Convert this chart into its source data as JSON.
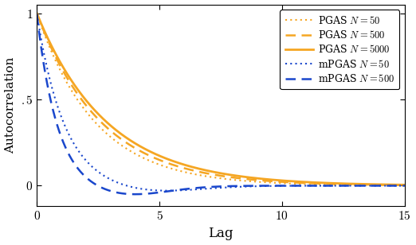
{
  "xlabel": "Lag",
  "ylabel": "Autocorrelation",
  "xlim": [
    0,
    15
  ],
  "ylim": [
    -0.12,
    1.05
  ],
  "yticks": [
    0,
    0.5,
    1.0
  ],
  "ytick_labels": [
    "$0$",
    "$.5$",
    "$1$"
  ],
  "xticks": [
    0,
    5,
    10,
    15
  ],
  "xtick_labels": [
    "$0$",
    "$5$",
    "$10$",
    "$15$"
  ],
  "orange_color": "#F5A623",
  "blue_color": "#1A47CC",
  "series": [
    {
      "label": "PGAS $N = 50$",
      "color": "#F5A623",
      "ls": "dotted",
      "lw": 1.6
    },
    {
      "label": "PGAS $N = 500$",
      "color": "#F5A623",
      "ls": "dashed",
      "lw": 1.8
    },
    {
      "label": "PGAS $N = 5000$",
      "color": "#F5A623",
      "ls": "solid",
      "lw": 2.0
    },
    {
      "label": "mPGAS $N = 50$",
      "color": "#1A47CC",
      "ls": "dotted",
      "lw": 1.6
    },
    {
      "label": "mPGAS $N = 500$",
      "color": "#1A47CC",
      "ls": "dashed",
      "lw": 1.8
    }
  ],
  "figwidth": 5.22,
  "figheight": 3.08,
  "dpi": 100
}
